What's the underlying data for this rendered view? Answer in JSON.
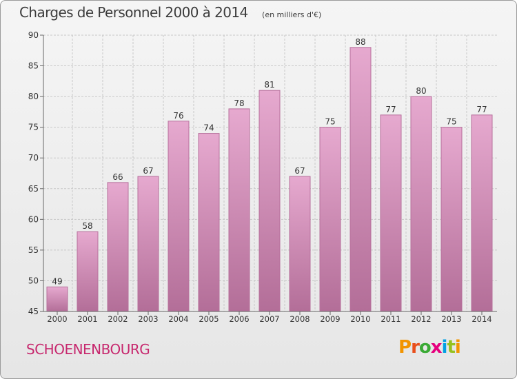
{
  "title": "Charges de Personnel 2000 à 2014",
  "unit": "(en milliers d'€)",
  "town": "SCHOENENBOURG",
  "brand": {
    "name": "Proxiti",
    "letters": [
      {
        "ch": "P",
        "color": "#f29400"
      },
      {
        "ch": "r",
        "color": "#e94e1b"
      },
      {
        "ch": "o",
        "color": "#3aaa35"
      },
      {
        "ch": "x",
        "color": "#e6007e"
      },
      {
        "ch": "i",
        "color": "#009fe3"
      },
      {
        "ch": "t",
        "color": "#95c11f"
      },
      {
        "ch": "i",
        "color": "#f29400"
      }
    ]
  },
  "colors": {
    "bar_top": "#e6a9cf",
    "bar_bottom": "#b36e98",
    "bar_stroke": "#b7709c",
    "grid": "#c8c8c8",
    "axis": "#666666",
    "text": "#333333"
  },
  "chart_data": {
    "type": "bar",
    "title": "Charges de Personnel 2000 à 2014",
    "ylabel": "",
    "xlabel": "",
    "ylim": [
      45,
      90
    ],
    "yticks": [
      45,
      50,
      55,
      60,
      65,
      70,
      75,
      80,
      85,
      90
    ],
    "grid": true,
    "categories": [
      "2000",
      "2001",
      "2002",
      "2003",
      "2004",
      "2005",
      "2006",
      "2007",
      "2008",
      "2009",
      "2010",
      "2011",
      "2012",
      "2013",
      "2014"
    ],
    "values": [
      49,
      58,
      66,
      67,
      76,
      74,
      78,
      81,
      67,
      75,
      88,
      77,
      80,
      75,
      77
    ]
  }
}
